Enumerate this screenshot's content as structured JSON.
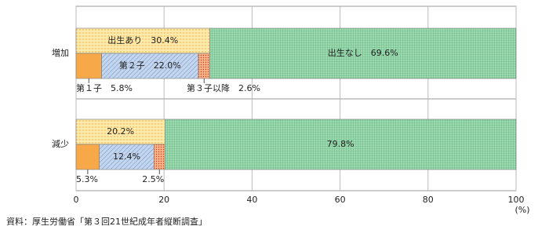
{
  "chart_data": {
    "type": "split-stacked-bar",
    "categories": [
      "増加",
      "減少"
    ],
    "series": [
      {
        "color": "#fde9a8",
        "pattern": "dots",
        "values": [
          30.4,
          20.2
        ],
        "value_labels": [
          "出生あり　30.4%",
          "20.2%"
        ],
        "parts": [
          {
            "color": "#f7a94a",
            "values": [
              5.8,
              5.3
            ],
            "value_labels": [
              "第１子　5.8%",
              "5.3%"
            ]
          },
          {
            "color": "#c4d6ee",
            "pattern": "hatch",
            "values": [
              22.0,
              12.4
            ],
            "value_labels": [
              "第２子　22.0%",
              "12.4%"
            ]
          },
          {
            "color": "#f6b48a",
            "pattern": "reddots",
            "values": [
              2.6,
              2.5
            ],
            "value_labels": [
              "第３子以降　2.6%",
              "2.5%"
            ]
          }
        ]
      },
      {
        "color": "#9ed9b0",
        "pattern": "grid",
        "values": [
          69.6,
          79.8
        ],
        "value_labels": [
          "出生なし　69.6%",
          "79.8%"
        ]
      }
    ],
    "xlim": [
      0,
      100
    ],
    "xticks": [
      0,
      20,
      40,
      60,
      80,
      100
    ],
    "x_unit": "(%)",
    "grid": true,
    "source": "資料：厚生労働省「第３回21世紀成年者縦断調査」"
  }
}
